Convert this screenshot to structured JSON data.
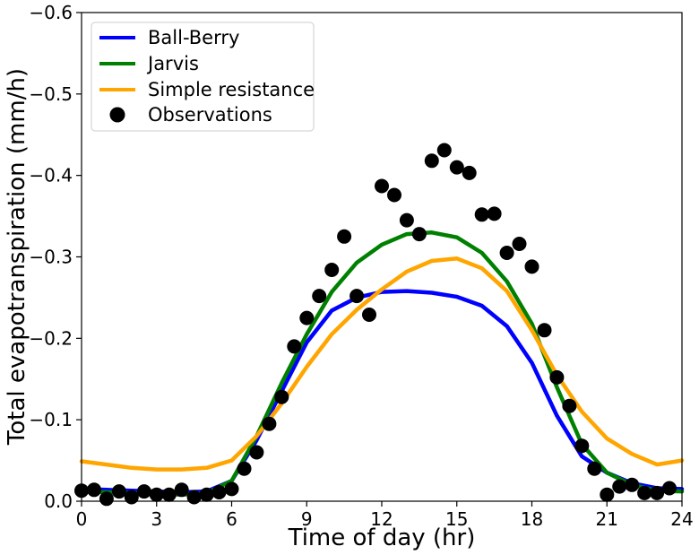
{
  "chart_data": {
    "type": "line",
    "xlabel": "Time of day (hr)",
    "ylabel": "Total evapotranspiration (mm/h)",
    "xlim": [
      0,
      24
    ],
    "ylim": [
      0,
      -0.6
    ],
    "y_axis_inverted": true,
    "grid": false,
    "legend_placement": "top-left",
    "x_ticks": [
      0,
      3,
      6,
      9,
      12,
      15,
      18,
      21,
      24
    ],
    "x_tick_labels": [
      "0",
      "3",
      "6",
      "9",
      "12",
      "15",
      "18",
      "21",
      "24"
    ],
    "y_ticks": [
      0,
      -0.1,
      -0.2,
      -0.3,
      -0.4,
      -0.5,
      -0.6
    ],
    "y_tick_labels": [
      "0.0",
      "−0.1",
      "−0.2",
      "−0.3",
      "−0.4",
      "−0.5",
      "−0.6"
    ],
    "series": [
      {
        "name": "Ball-Berry",
        "kind": "line",
        "color": "#0000ff",
        "x": [
          0,
          1,
          2,
          3,
          4,
          5,
          6,
          7,
          8,
          9,
          10,
          11,
          12,
          13,
          14,
          15,
          16,
          17,
          18,
          19,
          20,
          21,
          22,
          23,
          24
        ],
        "y": [
          -0.015,
          -0.014,
          -0.013,
          -0.012,
          -0.011,
          -0.012,
          -0.025,
          -0.075,
          -0.135,
          -0.195,
          -0.234,
          -0.25,
          -0.257,
          -0.258,
          -0.256,
          -0.251,
          -0.24,
          -0.215,
          -0.17,
          -0.105,
          -0.055,
          -0.035,
          -0.022,
          -0.016,
          -0.015
        ]
      },
      {
        "name": "Jarvis",
        "kind": "line",
        "color": "#008000",
        "x": [
          0,
          1,
          2,
          3,
          4,
          5,
          6,
          7,
          8,
          9,
          10,
          11,
          12,
          13,
          14,
          15,
          16,
          17,
          18,
          19,
          20,
          21,
          22,
          23,
          24
        ],
        "y": [
          -0.012,
          -0.011,
          -0.01,
          -0.009,
          -0.008,
          -0.01,
          -0.025,
          -0.08,
          -0.145,
          -0.205,
          -0.257,
          -0.293,
          -0.315,
          -0.328,
          -0.33,
          -0.324,
          -0.305,
          -0.27,
          -0.218,
          -0.14,
          -0.07,
          -0.035,
          -0.02,
          -0.013,
          -0.012
        ]
      },
      {
        "name": "Simple resistance",
        "kind": "line",
        "color": "#ffa500",
        "x": [
          0,
          1,
          2,
          3,
          4,
          5,
          6,
          7,
          8,
          9,
          10,
          11,
          12,
          13,
          14,
          15,
          16,
          17,
          18,
          19,
          20,
          21,
          22,
          23,
          24
        ],
        "y": [
          -0.049,
          -0.045,
          -0.041,
          -0.039,
          -0.039,
          -0.041,
          -0.05,
          -0.08,
          -0.12,
          -0.165,
          -0.205,
          -0.235,
          -0.26,
          -0.282,
          -0.295,
          -0.298,
          -0.286,
          -0.258,
          -0.21,
          -0.155,
          -0.11,
          -0.077,
          -0.058,
          -0.045,
          -0.05
        ]
      },
      {
        "name": "Observations",
        "kind": "scatter",
        "color": "#000000",
        "x": [
          0,
          0.5,
          1,
          1.5,
          2,
          2.5,
          3,
          3.5,
          4,
          4.5,
          5,
          5.5,
          6,
          6.5,
          7,
          7.5,
          8,
          8.5,
          9,
          9.5,
          10,
          10.5,
          11,
          11.5,
          12,
          12.5,
          13,
          13.5,
          14,
          14.5,
          15,
          15.5,
          16,
          16.5,
          17,
          17.5,
          18,
          18.5,
          19,
          19.5,
          20,
          20.5,
          21,
          21.5,
          22,
          22.5,
          23,
          23.5
        ],
        "y": [
          -0.013,
          -0.014,
          -0.003,
          -0.012,
          -0.005,
          -0.012,
          -0.008,
          -0.008,
          -0.014,
          -0.005,
          -0.008,
          -0.011,
          -0.015,
          -0.04,
          -0.06,
          -0.095,
          -0.128,
          -0.19,
          -0.225,
          -0.252,
          -0.284,
          -0.325,
          -0.252,
          -0.229,
          -0.387,
          -0.376,
          -0.345,
          -0.328,
          -0.418,
          -0.431,
          -0.41,
          -0.403,
          -0.352,
          -0.353,
          -0.305,
          -0.316,
          -0.288,
          -0.21,
          -0.152,
          -0.117,
          -0.068,
          -0.04,
          -0.008,
          -0.018,
          -0.02,
          -0.01,
          -0.01,
          -0.016
        ]
      }
    ]
  }
}
